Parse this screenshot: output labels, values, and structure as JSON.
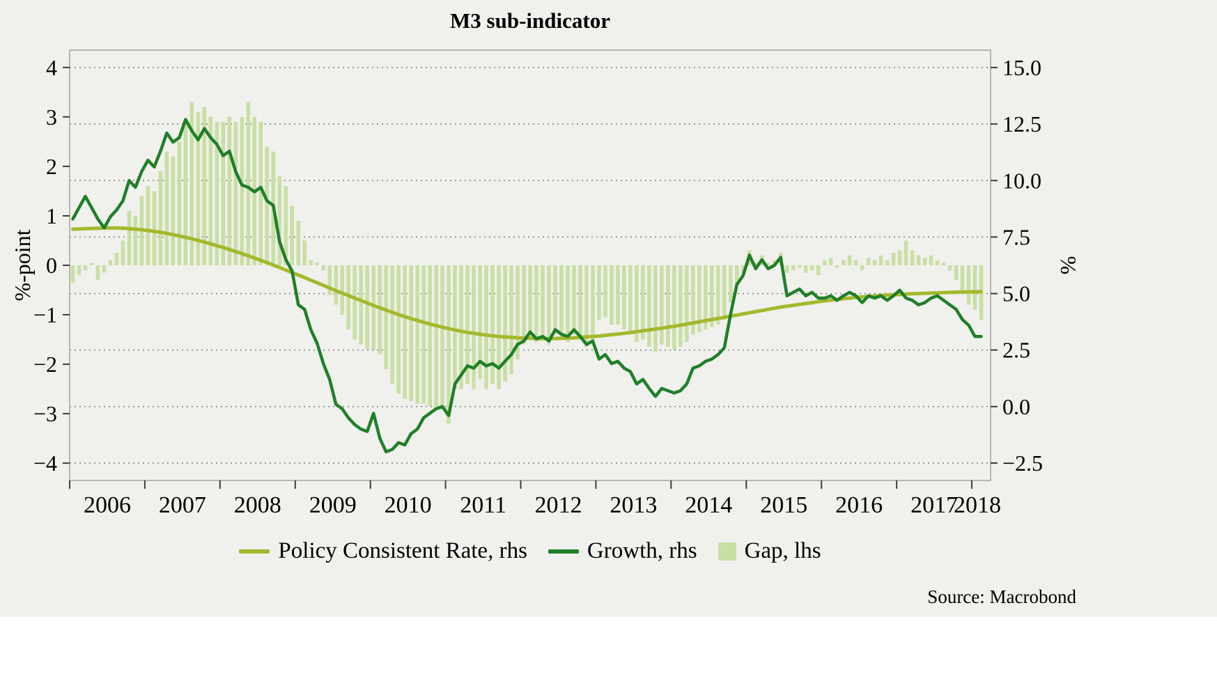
{
  "chart_data": {
    "type": "mixed",
    "title": "M3 sub-indicator",
    "source": "Source: Macrobond",
    "legend_position": "bottom-center",
    "grid": "dotted-horizontal",
    "left_axis": {
      "title": "%-point",
      "range": [
        -4.35,
        4.35
      ],
      "tick_values": [
        4,
        3,
        2,
        1,
        0,
        -1,
        -2,
        -3,
        -4
      ],
      "tick_labels": [
        "4",
        "3",
        "2",
        "1",
        "0",
        "−1",
        "−2",
        "−3",
        "−4"
      ]
    },
    "right_axis": {
      "title": "%",
      "range": [
        -3.27,
        15.77
      ],
      "tick_values": [
        15,
        12.5,
        10,
        7.5,
        5,
        2.5,
        0,
        -2.5
      ],
      "tick_labels": [
        "15.0",
        "12.5",
        "10.0",
        "7.5",
        "5.0",
        "2.5",
        "0.0",
        "−2.5"
      ]
    },
    "x_axis": {
      "start_year": 2006,
      "end_value": 2018.25,
      "frequency": "monthly",
      "tick_years": [
        2006,
        2007,
        2008,
        2009,
        2010,
        2011,
        2012,
        2013,
        2014,
        2015,
        2016,
        2017,
        2018
      ],
      "year_labels": [
        "2006",
        "2007",
        "2008",
        "2009",
        "2010",
        "2011",
        "2012",
        "2013",
        "2014",
        "2015",
        "2016",
        "2017",
        "2018"
      ]
    },
    "colors": {
      "policy": "#a4b82c",
      "growth": "#1f7f28",
      "gap": "#c9dfa4",
      "background": "#f0f0ed"
    },
    "series": [
      {
        "name": "Policy Consistent Rate, rhs",
        "type": "line",
        "axis": "rhs",
        "values": [
          7.85,
          7.86,
          7.87,
          7.88,
          7.89,
          7.9,
          7.9,
          7.9,
          7.89,
          7.87,
          7.85,
          7.82,
          7.79,
          7.75,
          7.71,
          7.66,
          7.61,
          7.55,
          7.49,
          7.42,
          7.35,
          7.28,
          7.2,
          7.12,
          7.04,
          6.95,
          6.86,
          6.77,
          6.67,
          6.57,
          6.47,
          6.37,
          6.26,
          6.15,
          6.04,
          5.93,
          5.82,
          5.71,
          5.59,
          5.48,
          5.36,
          5.25,
          5.13,
          5.02,
          4.91,
          4.8,
          4.69,
          4.58,
          4.47,
          4.37,
          4.27,
          4.17,
          4.07,
          3.98,
          3.89,
          3.81,
          3.73,
          3.65,
          3.58,
          3.51,
          3.45,
          3.39,
          3.33,
          3.28,
          3.24,
          3.2,
          3.16,
          3.13,
          3.1,
          3.08,
          3.06,
          3.04,
          3.03,
          3.02,
          3.01,
          3.01,
          3.01,
          3.01,
          3.02,
          3.03,
          3.04,
          3.06,
          3.08,
          3.1,
          3.12,
          3.15,
          3.18,
          3.21,
          3.24,
          3.27,
          3.31,
          3.35,
          3.39,
          3.43,
          3.47,
          3.51,
          3.55,
          3.6,
          3.65,
          3.7,
          3.75,
          3.8,
          3.85,
          3.9,
          3.95,
          4.0,
          4.05,
          4.1,
          4.15,
          4.2,
          4.25,
          4.3,
          4.35,
          4.4,
          4.44,
          4.48,
          4.52,
          4.56,
          4.6,
          4.64,
          4.68,
          4.71,
          4.74,
          4.77,
          4.8,
          4.83,
          4.85,
          4.87,
          4.89,
          4.91,
          4.93,
          4.95,
          4.96,
          4.98,
          4.99,
          5.0,
          5.01,
          5.02,
          5.03,
          5.04,
          5.05,
          5.06,
          5.07,
          5.07,
          5.08,
          5.08
        ]
      },
      {
        "name": "Growth, rhs",
        "type": "line",
        "axis": "rhs",
        "values": [
          8.3,
          8.8,
          9.3,
          8.8,
          8.3,
          7.9,
          8.4,
          8.7,
          9.1,
          10.0,
          9.7,
          10.4,
          10.9,
          10.6,
          11.3,
          12.1,
          11.7,
          11.9,
          12.7,
          12.2,
          11.8,
          12.3,
          11.9,
          11.6,
          11.1,
          11.3,
          10.4,
          9.8,
          9.7,
          9.5,
          9.7,
          9.1,
          8.9,
          7.3,
          6.5,
          6.0,
          4.5,
          4.3,
          3.4,
          2.8,
          1.9,
          1.2,
          0.1,
          -0.1,
          -0.5,
          -0.8,
          -1.0,
          -1.1,
          -0.3,
          -1.4,
          -2.0,
          -1.9,
          -1.6,
          -1.7,
          -1.2,
          -1.0,
          -0.5,
          -0.3,
          -0.1,
          0.0,
          -0.4,
          1.0,
          1.4,
          1.8,
          1.7,
          2.0,
          1.8,
          1.9,
          1.7,
          2.0,
          2.3,
          2.75,
          2.9,
          3.3,
          3.0,
          3.1,
          2.9,
          3.4,
          3.2,
          3.1,
          3.4,
          3.1,
          2.75,
          2.9,
          2.1,
          2.3,
          1.9,
          2.0,
          1.7,
          1.55,
          1.0,
          1.2,
          0.8,
          0.45,
          0.8,
          0.7,
          0.6,
          0.7,
          1.0,
          1.7,
          1.8,
          2.0,
          2.1,
          2.3,
          2.6,
          4.1,
          5.4,
          5.8,
          6.7,
          6.1,
          6.5,
          6.1,
          6.25,
          6.6,
          4.9,
          5.05,
          5.2,
          4.9,
          5.05,
          4.8,
          4.8,
          4.9,
          4.7,
          4.9,
          5.05,
          4.9,
          4.6,
          4.9,
          4.8,
          4.9,
          4.7,
          4.9,
          5.15,
          4.8,
          4.7,
          4.5,
          4.6,
          4.8,
          4.9,
          4.7,
          4.5,
          4.3,
          3.85,
          3.6,
          3.1,
          3.1
        ]
      },
      {
        "name": "Gap, lhs",
        "type": "bar",
        "axis": "lhs",
        "values": [
          -0.35,
          -0.2,
          -0.1,
          0.05,
          -0.3,
          -0.15,
          0.1,
          0.25,
          0.5,
          1.1,
          1.0,
          1.4,
          1.6,
          1.5,
          1.9,
          2.3,
          2.2,
          2.5,
          2.9,
          3.3,
          3.1,
          3.2,
          3.0,
          2.9,
          2.9,
          3.0,
          2.9,
          3.0,
          3.3,
          3.0,
          2.9,
          2.4,
          2.3,
          1.8,
          1.6,
          1.2,
          0.9,
          0.5,
          0.1,
          0.05,
          -0.1,
          -0.6,
          -0.8,
          -1.0,
          -1.3,
          -1.5,
          -1.6,
          -1.7,
          -1.7,
          -1.8,
          -2.1,
          -2.4,
          -2.6,
          -2.7,
          -2.75,
          -2.8,
          -2.8,
          -2.85,
          -2.9,
          -2.85,
          -3.2,
          -2.5,
          -2.5,
          -2.4,
          -2.5,
          -2.3,
          -2.5,
          -2.4,
          -2.5,
          -2.35,
          -2.2,
          -1.9,
          -1.6,
          -1.5,
          -1.55,
          -1.5,
          -1.6,
          -1.4,
          -1.5,
          -1.55,
          -1.4,
          -1.5,
          -1.65,
          -1.6,
          -1.1,
          -1.05,
          -1.2,
          -1.2,
          -1.3,
          -1.35,
          -1.55,
          -1.5,
          -1.65,
          -1.75,
          -1.6,
          -1.65,
          -1.7,
          -1.65,
          -1.55,
          -1.4,
          -1.35,
          -1.3,
          -1.25,
          -1.2,
          -1.1,
          -0.75,
          -0.4,
          -0.15,
          0.3,
          0.05,
          0.2,
          0.05,
          0.1,
          0.25,
          -0.15,
          -0.1,
          -0.05,
          -0.15,
          -0.1,
          -0.2,
          0.1,
          0.15,
          -0.05,
          0.1,
          0.2,
          0.1,
          -0.1,
          0.15,
          0.1,
          0.2,
          0.1,
          0.25,
          0.3,
          0.5,
          0.3,
          0.2,
          0.15,
          0.2,
          0.1,
          0.05,
          -0.1,
          -0.3,
          -0.5,
          -0.8,
          -0.9,
          -1.1
        ]
      }
    ]
  }
}
